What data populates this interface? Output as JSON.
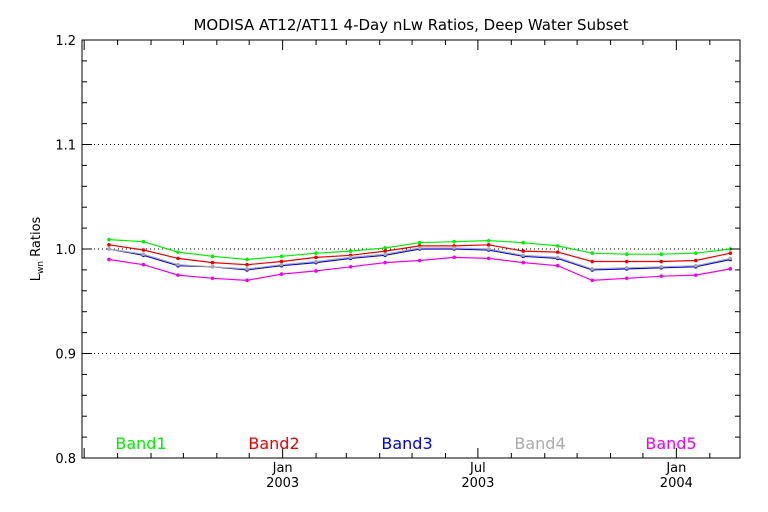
{
  "chart_data": {
    "type": "line",
    "title": "MODISA AT12/AT11 4-Day nLw Ratios, Deep Water Subset",
    "ylabel_main": "L",
    "ylabel_sub": "wn",
    "ylabel_rest": " Ratios",
    "ylim": [
      0.8,
      1.2
    ],
    "y_ticks": [
      "0.8",
      "0.9",
      "1.0",
      "1.1",
      "1.2"
    ],
    "y_gridlines": [
      0.9,
      1.0,
      1.1
    ],
    "x_tick_labels": [
      {
        "month": "Jan",
        "year": "2003"
      },
      {
        "month": "Jul",
        "year": "2003"
      },
      {
        "month": "Jan",
        "year": "2004"
      }
    ],
    "x": [
      "2002-07-24",
      "2002-08-25",
      "2002-09-26",
      "2002-10-28",
      "2002-11-29",
      "2002-12-31",
      "2003-02-01",
      "2003-03-05",
      "2003-04-06",
      "2003-05-08",
      "2003-06-09",
      "2003-07-11",
      "2003-08-12",
      "2003-09-13",
      "2003-10-15",
      "2003-11-16",
      "2003-12-18",
      "2004-01-19",
      "2004-02-20"
    ],
    "series": [
      {
        "name": "Band1",
        "color": "#00ee00",
        "values": [
          1.009,
          1.007,
          0.997,
          0.993,
          0.99,
          0.993,
          0.996,
          0.998,
          1.001,
          1.006,
          1.007,
          1.008,
          1.006,
          1.003,
          0.996,
          0.995,
          0.995,
          0.996,
          1.0
        ]
      },
      {
        "name": "Band2",
        "color": "#ee0000",
        "values": [
          1.004,
          0.999,
          0.991,
          0.987,
          0.985,
          0.988,
          0.992,
          0.994,
          0.998,
          1.003,
          1.003,
          1.004,
          0.998,
          0.997,
          0.988,
          0.988,
          0.988,
          0.989,
          0.996
        ]
      },
      {
        "name": "Band3",
        "color": "#0000ee",
        "values": [
          1.0,
          0.994,
          0.984,
          0.983,
          0.98,
          0.984,
          0.987,
          0.991,
          0.994,
          1.0,
          1.0,
          0.999,
          0.993,
          0.991,
          0.98,
          0.981,
          0.982,
          0.983,
          0.99
        ]
      },
      {
        "name": "Band4",
        "color": "#aaaaaa",
        "values": [
          1.0,
          0.995,
          0.985,
          0.983,
          0.981,
          0.985,
          0.988,
          0.992,
          0.995,
          1.001,
          1.001,
          1.0,
          0.994,
          0.992,
          0.981,
          0.982,
          0.983,
          0.984,
          0.991
        ]
      },
      {
        "name": "Band5",
        "color": "#ee00ee",
        "values": [
          0.99,
          0.985,
          0.975,
          0.972,
          0.97,
          0.976,
          0.979,
          0.983,
          0.987,
          0.989,
          0.992,
          0.991,
          0.987,
          0.984,
          0.97,
          0.972,
          0.974,
          0.975,
          0.981
        ]
      }
    ],
    "legend_placement": "bottom inside plot",
    "grid": "dotted horizontal"
  }
}
